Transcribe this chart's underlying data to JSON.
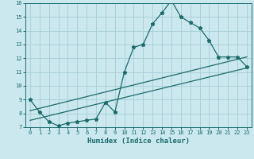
{
  "xlabel": "Humidex (Indice chaleur)",
  "ylabel": "",
  "bg_color": "#cce8ef",
  "grid_color": "#aad0d8",
  "line_color": "#1a6b6b",
  "xlim": [
    -0.5,
    23.5
  ],
  "ylim": [
    7,
    16
  ],
  "xticks": [
    0,
    1,
    2,
    3,
    4,
    5,
    6,
    7,
    8,
    9,
    10,
    11,
    12,
    13,
    14,
    15,
    16,
    17,
    18,
    19,
    20,
    21,
    22,
    23
  ],
  "yticks": [
    7,
    8,
    9,
    10,
    11,
    12,
    13,
    14,
    15,
    16
  ],
  "line1_x": [
    0,
    1,
    2,
    3,
    4,
    5,
    6,
    7,
    8,
    9,
    10,
    11,
    12,
    13,
    14,
    15,
    16,
    17,
    18,
    19,
    20,
    21,
    22,
    23
  ],
  "line1_y": [
    9.0,
    8.1,
    7.4,
    7.1,
    7.3,
    7.4,
    7.5,
    7.6,
    8.8,
    8.1,
    11.0,
    12.8,
    13.0,
    14.5,
    15.3,
    16.2,
    15.0,
    14.6,
    14.2,
    13.3,
    12.1,
    12.1,
    12.1,
    11.4
  ],
  "line2_x": [
    0,
    23
  ],
  "line2_y": [
    8.2,
    12.1
  ],
  "line3_x": [
    0,
    23
  ],
  "line3_y": [
    7.5,
    11.3
  ],
  "marker": "*",
  "markersize": 3.5,
  "tick_fontsize": 5.0,
  "xlabel_fontsize": 6.5
}
